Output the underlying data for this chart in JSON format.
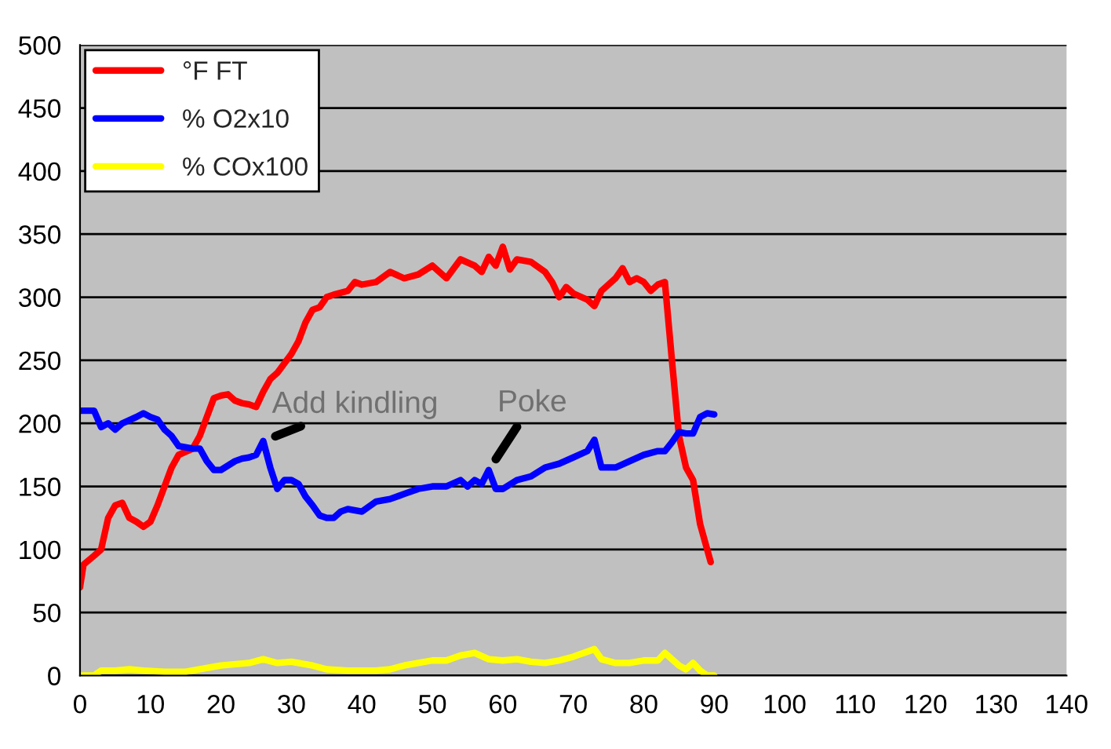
{
  "chart_data": {
    "type": "line",
    "xlim": [
      0,
      140
    ],
    "xticks": [
      0,
      10,
      20,
      30,
      40,
      50,
      60,
      70,
      80,
      90,
      100,
      110,
      120,
      130,
      140
    ],
    "ylim": [
      0,
      500
    ],
    "yticks": [
      0,
      50,
      100,
      150,
      200,
      250,
      300,
      350,
      400,
      450,
      500
    ],
    "grid": "y",
    "legend": "top left",
    "marker": "none",
    "line_style": "solid",
    "annotations": [
      {
        "text": "Add kindling",
        "x": 26,
        "y": 186
      },
      {
        "text": "Poke",
        "x": 58,
        "y": 163
      }
    ],
    "series": [
      {
        "name": "°F FT",
        "color": "#ff0000",
        "x": [
          0,
          0.5,
          2,
          3,
          4,
          5,
          6,
          7,
          8,
          9,
          10,
          11,
          12,
          13,
          14,
          16,
          17,
          18,
          19,
          20,
          21,
          22,
          23,
          24,
          25,
          26,
          27,
          28,
          30,
          31,
          32,
          33,
          34,
          35,
          36,
          38,
          39,
          40,
          42,
          44,
          46,
          48,
          50,
          52,
          54,
          56,
          57,
          58,
          59,
          60,
          61,
          62,
          64,
          66,
          67,
          68,
          69,
          70,
          72,
          73,
          74,
          76,
          77,
          78,
          79,
          80,
          81,
          82,
          83,
          84,
          85,
          86,
          87,
          88,
          89,
          89.5
        ],
        "values": [
          70,
          88,
          95,
          100,
          125,
          135,
          137,
          125,
          122,
          118,
          122,
          135,
          150,
          165,
          175,
          180,
          190,
          205,
          220,
          222,
          223,
          218,
          216,
          215,
          213,
          225,
          235,
          240,
          255,
          265,
          280,
          290,
          292,
          300,
          302,
          305,
          312,
          310,
          312,
          320,
          315,
          318,
          325,
          315,
          330,
          325,
          320,
          332,
          325,
          340,
          322,
          330,
          328,
          320,
          312,
          300,
          308,
          303,
          298,
          293,
          305,
          315,
          323,
          312,
          315,
          312,
          305,
          310,
          312,
          250,
          190,
          165,
          155,
          120,
          100,
          90
        ]
      },
      {
        "name": "% O2x10",
        "color": "#0000ff",
        "x": [
          0,
          2,
          3,
          4,
          5,
          6,
          8,
          9,
          10,
          11,
          12,
          13,
          14,
          16,
          17,
          18,
          19,
          20,
          22,
          23,
          24,
          25,
          26,
          27,
          28,
          29,
          30,
          31,
          32,
          33,
          34,
          35,
          36,
          37,
          38,
          40,
          42,
          44,
          46,
          48,
          50,
          52,
          54,
          55,
          56,
          57,
          58,
          59,
          60,
          62,
          64,
          66,
          68,
          70,
          72,
          73,
          74,
          76,
          78,
          80,
          82,
          83,
          84,
          85,
          86,
          87,
          88,
          89,
          90
        ],
        "values": [
          210,
          210,
          197,
          200,
          195,
          200,
          205,
          208,
          205,
          203,
          195,
          190,
          182,
          180,
          180,
          170,
          163,
          163,
          170,
          172,
          173,
          175,
          186,
          165,
          148,
          155,
          155,
          152,
          142,
          135,
          127,
          125,
          125,
          130,
          132,
          130,
          138,
          140,
          144,
          148,
          150,
          150,
          155,
          150,
          155,
          152,
          163,
          148,
          148,
          155,
          158,
          165,
          168,
          173,
          178,
          187,
          165,
          165,
          170,
          175,
          178,
          178,
          185,
          193,
          192,
          192,
          205,
          208,
          207
        ]
      },
      {
        "name": "% COx100",
        "color": "#ffff00",
        "x": [
          0,
          2,
          3,
          5,
          7,
          9,
          12,
          15,
          17,
          20,
          24,
          26,
          28,
          30,
          33,
          35,
          38,
          42,
          44,
          46,
          48,
          50,
          52,
          54,
          56,
          58,
          60,
          62,
          64,
          66,
          68,
          70,
          72,
          73,
          74,
          76,
          78,
          80,
          82,
          83,
          84,
          85,
          86,
          87,
          88,
          89,
          90
        ],
        "values": [
          0,
          0,
          4,
          4,
          5,
          4,
          3,
          3,
          5,
          8,
          10,
          13,
          10,
          11,
          8,
          5,
          4,
          4,
          5,
          8,
          10,
          12,
          12,
          16,
          18,
          13,
          12,
          13,
          11,
          10,
          12,
          15,
          19,
          21,
          13,
          10,
          10,
          12,
          12,
          18,
          13,
          8,
          5,
          10,
          4,
          0,
          0
        ]
      }
    ]
  }
}
